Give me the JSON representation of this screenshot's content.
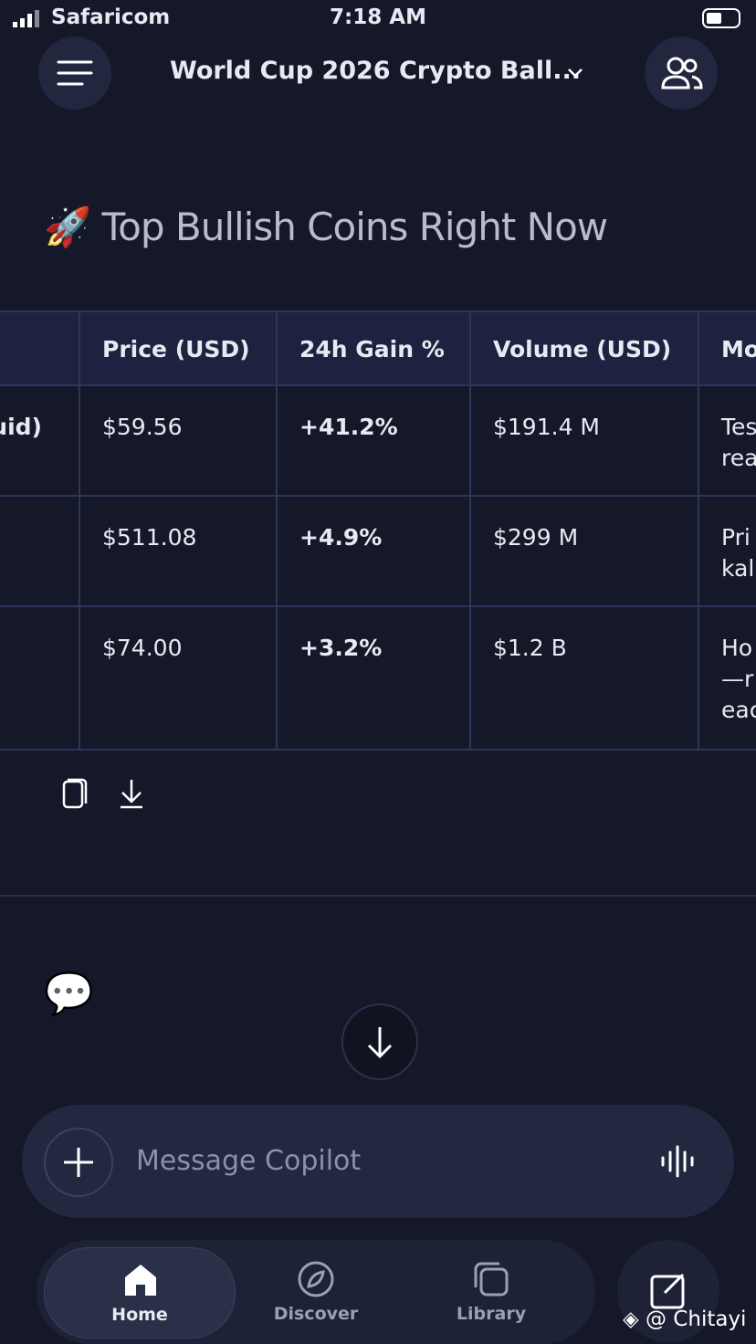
{
  "status_bar": {
    "carrier": "Safaricom",
    "time": "7:18 AM"
  },
  "header": {
    "title": "World Cup 2026 Crypto Ball..."
  },
  "heading": {
    "icon": "🚀",
    "text": "Top Bullish Coins Right Now"
  },
  "table": {
    "header": [
      null,
      "Price (USD)",
      "24h Gain %",
      "Volume (USD)",
      "Mo"
    ],
    "rows": [
      [
        "uid)",
        "$59.56",
        "+41.2%",
        "$191.4 M",
        [
          "Tes",
          "rea"
        ]
      ],
      [
        null,
        "$511.08",
        "+4.9%",
        "$299 M",
        [
          "Pri",
          "kal"
        ]
      ],
      [
        null,
        "$74.00",
        "+3.2%",
        "$1.2 B",
        [
          "Ho",
          "—r",
          "eac"
        ]
      ]
    ]
  },
  "chat_icon": "💬",
  "composer": {
    "placeholder": "Message Copilot"
  },
  "nav": {
    "items": [
      "Home",
      "Discover",
      "Library"
    ]
  },
  "watermark": "@ Chitayi"
}
